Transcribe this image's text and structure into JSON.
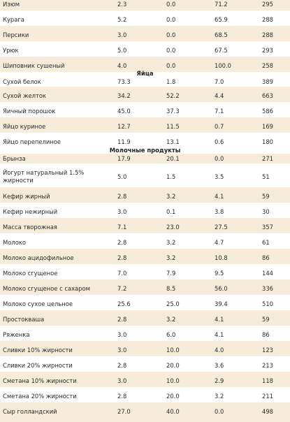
{
  "rows": [
    {
      "name": "Изюм",
      "c1": "2.3",
      "c2": "0.0",
      "c3": "71.2",
      "c4": "295"
    },
    {
      "name": "Курага",
      "c1": "5.2",
      "c2": "0.0",
      "c3": "65.9",
      "c4": "288"
    },
    {
      "name": "Персики",
      "c1": "3.0",
      "c2": "0.0",
      "c3": "68.5",
      "c4": "288"
    },
    {
      "name": "Урюк",
      "c1": "5.0",
      "c2": "0.0",
      "c3": "67.5",
      "c4": "293"
    },
    {
      "name": "Шиповник сушеный",
      "c1": "4.0",
      "c2": "0.0",
      "c3": "100.0",
      "c4": "258"
    },
    {
      "name": "Сухой белок",
      "c1": "73.3",
      "c2": "1.8",
      "c3": "7.0",
      "c4": "389"
    },
    {
      "name": "Сухой желток",
      "c1": "34.2",
      "c2": "52.2",
      "c3": "4.4",
      "c4": "663"
    },
    {
      "name": "Яичный порошок",
      "c1": "45.0",
      "c2": "37.3",
      "c3": "7.1",
      "c4": "586"
    },
    {
      "name": "Яйцо куриное",
      "c1": "12.7",
      "c2": "11.5",
      "c3": "0.7",
      "c4": "169"
    },
    {
      "name": "Яйцо перепелиное",
      "c1": "11.9",
      "c2": "13.1",
      "c3": "0.6",
      "c4": "180"
    },
    {
      "name": "Брынза",
      "c1": "17.9",
      "c2": "20.1",
      "c3": "0.0",
      "c4": "271"
    },
    {
      "name": "Йогурт натуральный 1.5% жирности",
      "c1": "5.0",
      "c2": "1.5",
      "c3": "3.5",
      "c4": "51"
    },
    {
      "name": "Кефир жирный",
      "c1": "2.8",
      "c2": "3.2",
      "c3": "4.1",
      "c4": "59"
    },
    {
      "name": "Кефир нежирный",
      "c1": "3.0",
      "c2": "0.1",
      "c3": "3.8",
      "c4": "30"
    },
    {
      "name": "Масса творожная",
      "c1": "7.1",
      "c2": "23.0",
      "c3": "27.5",
      "c4": "357"
    },
    {
      "name": "Молоко",
      "c1": "2.8",
      "c2": "3.2",
      "c3": "4.7",
      "c4": "61"
    },
    {
      "name": "Молоко ацидофильное",
      "c1": "2.8",
      "c2": "3.2",
      "c3": "10.8",
      "c4": "86"
    },
    {
      "name": "Молоко сгущеное",
      "c1": "7.0",
      "c2": "7.9",
      "c3": "9.5",
      "c4": "144"
    },
    {
      "name": "Молоко сгущеное с сахаром",
      "c1": "7.2",
      "c2": "8.5",
      "c3": "56.0",
      "c4": "336"
    },
    {
      "name": "Молоко сухое цельное",
      "c1": "25.6",
      "c2": "25.0",
      "c3": "39.4",
      "c4": "510"
    },
    {
      "name": "Простокваша",
      "c1": "2.8",
      "c2": "3.2",
      "c3": "4.1",
      "c4": "59"
    },
    {
      "name": "Ряженка",
      "c1": "3.0",
      "c2": "6.0",
      "c3": "4.1",
      "c4": "86"
    },
    {
      "name": "Сливки 10% жирности",
      "c1": "3.0",
      "c2": "10.0",
      "c3": "4.0",
      "c4": "123"
    },
    {
      "name": "Сливки 20% жирности",
      "c1": "2.8",
      "c2": "20.0",
      "c3": "3.6",
      "c4": "213"
    },
    {
      "name": "Сметана 10% жирности",
      "c1": "3.0",
      "c2": "10.0",
      "c3": "2.9",
      "c4": "118"
    },
    {
      "name": "Сметана 20% жирности",
      "c1": "2.8",
      "c2": "20.0",
      "c3": "3.2",
      "c4": "211"
    },
    {
      "name": "Сыр голландский",
      "c1": "27.0",
      "c2": "40.0",
      "c3": "0.0",
      "c4": "498"
    }
  ],
  "section_headings": [
    {
      "text": "Яйца"
    },
    {
      "text": "Молочные продукты"
    }
  ],
  "colors": {
    "row_shade": "#f6ecd9",
    "text": "#2b2b2b"
  }
}
